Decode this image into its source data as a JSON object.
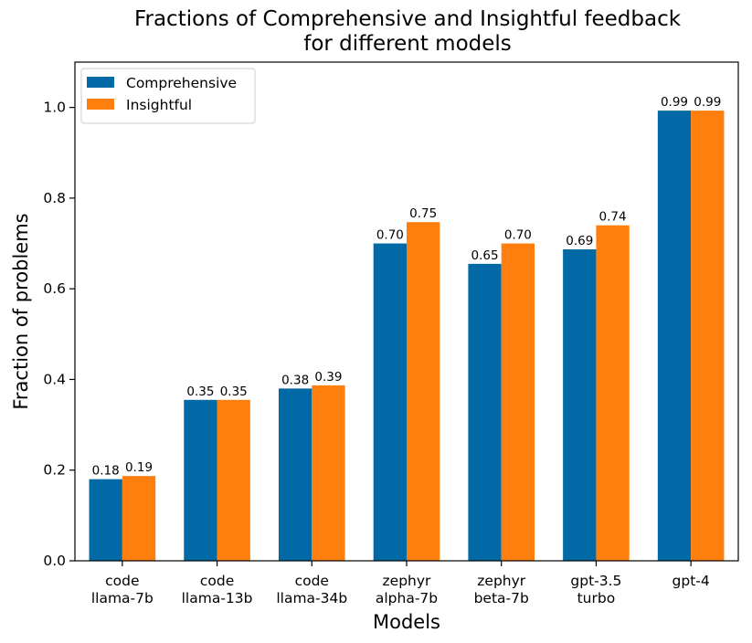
{
  "chart_data": {
    "type": "bar",
    "title_lines": [
      "Fractions of Comprehensive and Insightful feedback",
      "for different models"
    ],
    "xlabel": "Models",
    "ylabel": "Fraction of problems",
    "categories": [
      [
        "code",
        "llama-7b"
      ],
      [
        "code",
        "llama-13b"
      ],
      [
        "code",
        "llama-34b"
      ],
      [
        "zephyr",
        "alpha-7b"
      ],
      [
        "zephyr",
        "beta-7b"
      ],
      [
        "gpt-3.5",
        "turbo"
      ],
      [
        "gpt-4"
      ]
    ],
    "series": [
      {
        "name": "Comprehensive",
        "color": "#0069a6",
        "values": [
          0.18,
          0.355,
          0.38,
          0.7,
          0.655,
          0.687,
          0.993
        ],
        "labels": [
          "0.18",
          "0.35",
          "0.38",
          "0.70",
          "0.65",
          "0.69",
          "0.99"
        ]
      },
      {
        "name": "Insightful",
        "color": "#ff7f0e",
        "values": [
          0.187,
          0.355,
          0.387,
          0.747,
          0.7,
          0.74,
          0.993
        ],
        "labels": [
          "0.19",
          "0.35",
          "0.39",
          "0.75",
          "0.70",
          "0.74",
          "0.99"
        ]
      }
    ],
    "ylim": [
      0,
      1.1
    ],
    "yticks": [
      0.0,
      0.2,
      0.4,
      0.6,
      0.8,
      1.0
    ],
    "ytick_labels": [
      "0.0",
      "0.2",
      "0.4",
      "0.6",
      "0.8",
      "1.0"
    ],
    "legend_position": "top-left",
    "grid": false
  }
}
